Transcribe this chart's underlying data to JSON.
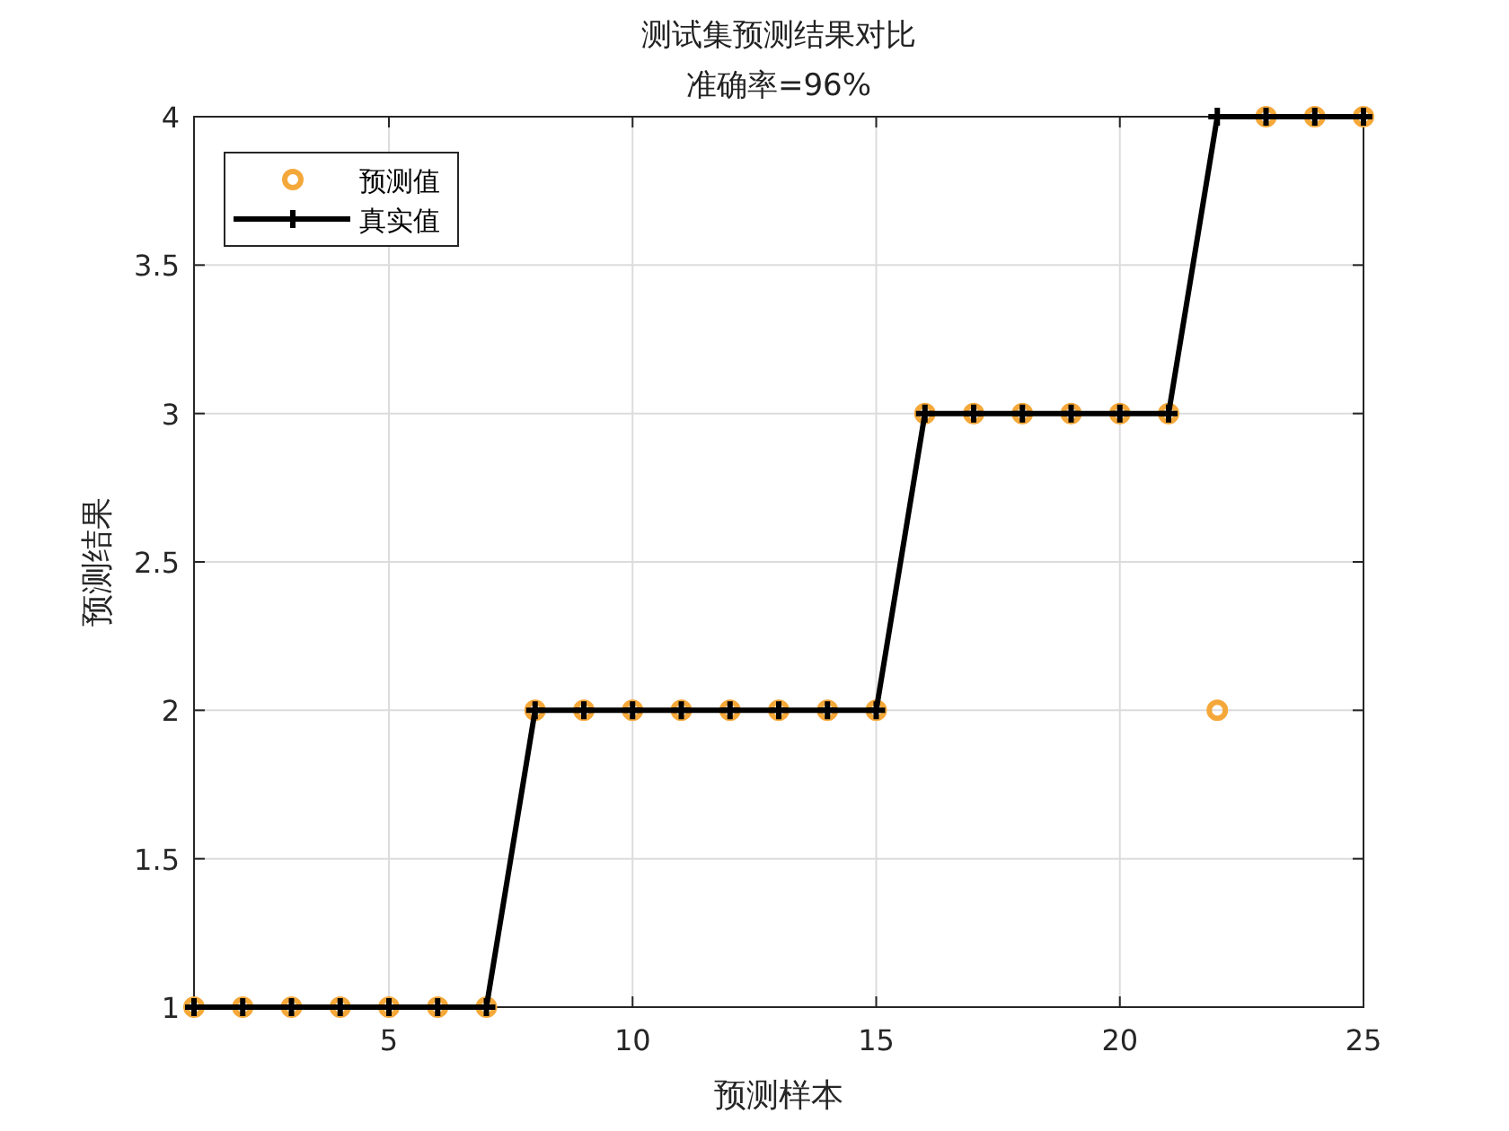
{
  "chart_data": {
    "type": "line",
    "title": "测试集预测结果对比",
    "subtitle": "准确率=96%",
    "xlabel": "预测样本",
    "ylabel": "预测结果",
    "x": [
      1,
      2,
      3,
      4,
      5,
      6,
      7,
      8,
      9,
      10,
      11,
      12,
      13,
      14,
      15,
      16,
      17,
      18,
      19,
      20,
      21,
      22,
      23,
      24,
      25
    ],
    "series": [
      {
        "name": "预测值",
        "type": "scatter",
        "marker": "circle",
        "color": "#f5a83a",
        "values": [
          1,
          1,
          1,
          1,
          1,
          1,
          1,
          2,
          2,
          2,
          2,
          2,
          2,
          2,
          2,
          3,
          3,
          3,
          3,
          3,
          3,
          2,
          4,
          4,
          4
        ]
      },
      {
        "name": "真实值",
        "marker": "cross",
        "line_style": "solid",
        "color": "#000000",
        "values": [
          1,
          1,
          1,
          1,
          1,
          1,
          1,
          2,
          2,
          2,
          2,
          2,
          2,
          2,
          2,
          3,
          3,
          3,
          3,
          3,
          3,
          4,
          4,
          4,
          4
        ]
      }
    ],
    "xlim": [
      1,
      25
    ],
    "xticks": [
      5,
      10,
      15,
      20,
      25
    ],
    "ylim": [
      1,
      4
    ],
    "yticks": [
      1,
      1.5,
      2,
      2.5,
      3,
      3.5,
      4
    ],
    "grid": true,
    "legend": "top left"
  }
}
